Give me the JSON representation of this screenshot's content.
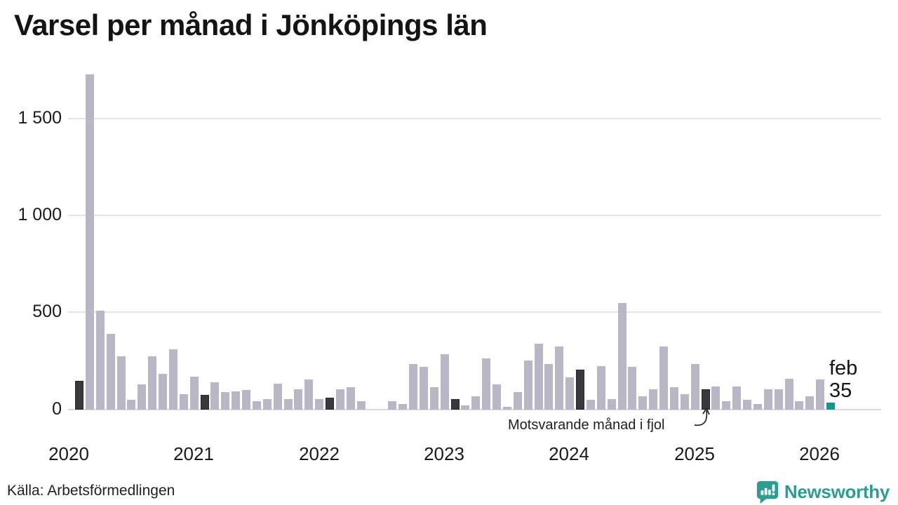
{
  "title": "Varsel per månad i Jönköpings län",
  "source": "Källa: Arbetsförmedlingen",
  "logo": {
    "text": "Newsworthy",
    "icon": "newsworthy-speech-bubble-bar-chart-icon"
  },
  "annotation": {
    "text": "Motsvarande månad i fjol",
    "points_to": "2025-02"
  },
  "highlight_label": {
    "line1": "feb",
    "line2": "35"
  },
  "colors": {
    "bar": "#b9b6c6",
    "bar_last_year_month": "#39393d",
    "bar_latest": "#13988b",
    "grid": "#e4e4ea",
    "axis": "#d9d9de",
    "text": "#1a1a1a",
    "brand_teal": "#2e9c90"
  },
  "chart_data": {
    "type": "bar",
    "title": "Varsel per månad i Jönköpings län",
    "xlabel": "",
    "ylabel": "",
    "ylim": [
      0,
      1750
    ],
    "grid": "horizontal",
    "yticks": [
      {
        "value": 0,
        "label": "0"
      },
      {
        "value": 500,
        "label": "500"
      },
      {
        "value": 1000,
        "label": "1 000"
      },
      {
        "value": 1500,
        "label": "1 500"
      }
    ],
    "x_year_labels": [
      "2020",
      "2021",
      "2022",
      "2023",
      "2024",
      "2025",
      "2026"
    ],
    "series": [
      {
        "name": "Varsel per månad",
        "points": [
          [
            "2020-02",
            150,
            "fjol"
          ],
          [
            "2020-03",
            1730,
            ""
          ],
          [
            "2020-04",
            510,
            ""
          ],
          [
            "2020-05",
            390,
            ""
          ],
          [
            "2020-06",
            275,
            ""
          ],
          [
            "2020-07",
            50,
            ""
          ],
          [
            "2020-08",
            130,
            ""
          ],
          [
            "2020-09",
            275,
            ""
          ],
          [
            "2020-10",
            185,
            ""
          ],
          [
            "2020-11",
            310,
            ""
          ],
          [
            "2020-12",
            80,
            ""
          ],
          [
            "2021-01",
            170,
            ""
          ],
          [
            "2021-02",
            75,
            "fjol"
          ],
          [
            "2021-03",
            140,
            ""
          ],
          [
            "2021-04",
            90,
            ""
          ],
          [
            "2021-05",
            95,
            ""
          ],
          [
            "2021-06",
            100,
            ""
          ],
          [
            "2021-07",
            45,
            ""
          ],
          [
            "2021-08",
            55,
            ""
          ],
          [
            "2021-09",
            135,
            ""
          ],
          [
            "2021-10",
            55,
            ""
          ],
          [
            "2021-11",
            105,
            ""
          ],
          [
            "2021-12",
            155,
            ""
          ],
          [
            "2022-01",
            55,
            ""
          ],
          [
            "2022-02",
            60,
            "fjol"
          ],
          [
            "2022-03",
            105,
            ""
          ],
          [
            "2022-04",
            115,
            ""
          ],
          [
            "2022-05",
            45,
            ""
          ],
          [
            "2022-06",
            0,
            ""
          ],
          [
            "2022-07",
            0,
            ""
          ],
          [
            "2022-08",
            45,
            ""
          ],
          [
            "2022-09",
            30,
            ""
          ],
          [
            "2022-10",
            235,
            ""
          ],
          [
            "2022-11",
            220,
            ""
          ],
          [
            "2022-12",
            115,
            ""
          ],
          [
            "2023-01",
            285,
            ""
          ],
          [
            "2023-02",
            55,
            "fjol"
          ],
          [
            "2023-03",
            20,
            ""
          ],
          [
            "2023-04",
            70,
            ""
          ],
          [
            "2023-05",
            265,
            ""
          ],
          [
            "2023-06",
            130,
            ""
          ],
          [
            "2023-07",
            15,
            ""
          ],
          [
            "2023-08",
            90,
            ""
          ],
          [
            "2023-09",
            255,
            ""
          ],
          [
            "2023-10",
            340,
            ""
          ],
          [
            "2023-11",
            235,
            ""
          ],
          [
            "2023-12",
            325,
            ""
          ],
          [
            "2024-01",
            165,
            ""
          ],
          [
            "2024-02",
            205,
            "fjol"
          ],
          [
            "2024-03",
            50,
            ""
          ],
          [
            "2024-04",
            225,
            ""
          ],
          [
            "2024-05",
            55,
            ""
          ],
          [
            "2024-06",
            550,
            ""
          ],
          [
            "2024-07",
            220,
            ""
          ],
          [
            "2024-08",
            70,
            ""
          ],
          [
            "2024-09",
            105,
            ""
          ],
          [
            "2024-10",
            325,
            ""
          ],
          [
            "2024-11",
            115,
            ""
          ],
          [
            "2024-12",
            80,
            ""
          ],
          [
            "2025-01",
            235,
            ""
          ],
          [
            "2025-02",
            105,
            "fjol"
          ],
          [
            "2025-03",
            120,
            ""
          ],
          [
            "2025-04",
            45,
            ""
          ],
          [
            "2025-05",
            120,
            ""
          ],
          [
            "2025-06",
            50,
            ""
          ],
          [
            "2025-07",
            30,
            ""
          ],
          [
            "2025-08",
            105,
            ""
          ],
          [
            "2025-09",
            105,
            ""
          ],
          [
            "2025-10",
            160,
            ""
          ],
          [
            "2025-11",
            45,
            ""
          ],
          [
            "2025-12",
            70,
            ""
          ],
          [
            "2026-01",
            155,
            ""
          ],
          [
            "2026-02",
            35,
            "latest"
          ]
        ]
      }
    ],
    "legend": "none"
  }
}
